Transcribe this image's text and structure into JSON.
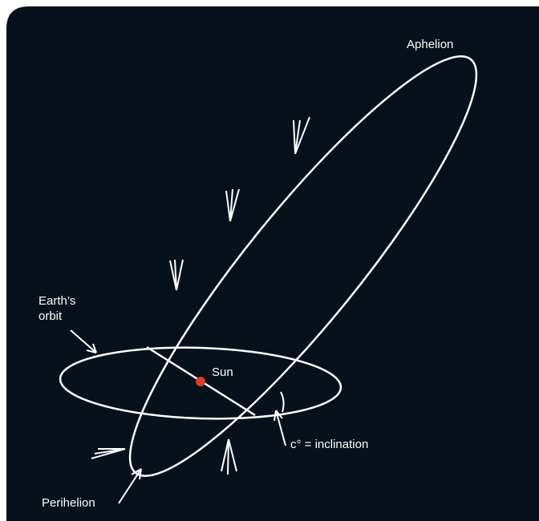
{
  "labels": {
    "aphelion": "Aphelion",
    "earth_orbit": [
      "Earth’s",
      "orbit"
    ],
    "sun": "Sun",
    "inclination": "c° = inclination",
    "perihelion": "Perihelion"
  }
}
